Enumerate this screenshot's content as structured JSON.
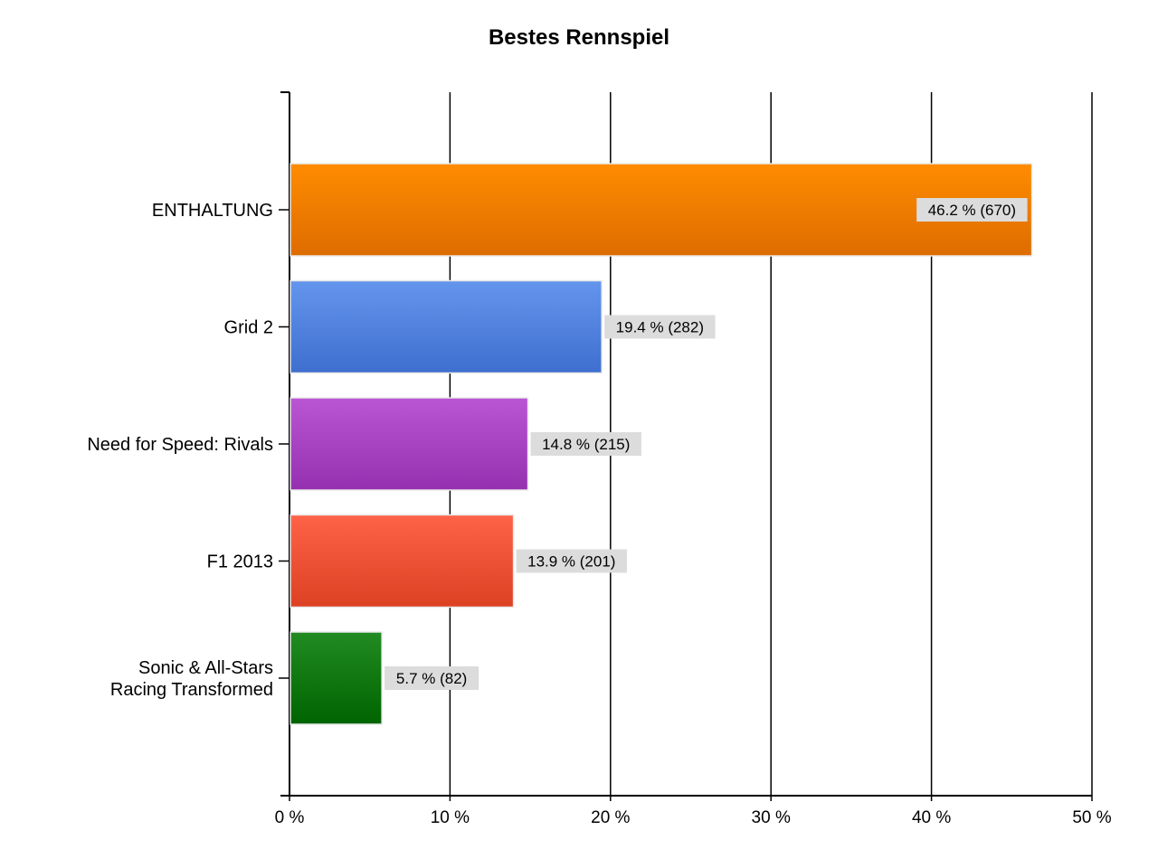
{
  "chart_data": {
    "type": "bar",
    "orientation": "horizontal",
    "title": "Bestes Rennspiel",
    "xlim": [
      0,
      50
    ],
    "xticks": [
      0,
      10,
      20,
      30,
      40,
      50
    ],
    "xtick_labels": [
      "0 %",
      "10 %",
      "20 %",
      "30 %",
      "40 %",
      "50 %"
    ],
    "grid": true,
    "legend": "none",
    "categories": [
      "ENTHALTUNG",
      "Grid 2",
      "Need for Speed: Rivals",
      "F1 2013",
      "Sonic & All-Stars Racing Transformed"
    ],
    "category_lines": [
      [
        "ENTHALTUNG"
      ],
      [
        "Grid 2"
      ],
      [
        "Need for Speed: Rivals"
      ],
      [
        "F1 2013"
      ],
      [
        "Sonic & All-Stars",
        "Racing Transformed"
      ]
    ],
    "values": [
      46.2,
      19.4,
      14.8,
      13.9,
      5.7
    ],
    "counts": [
      670,
      282,
      215,
      201,
      82
    ],
    "data_labels": [
      "46.2 % (670)",
      "19.4 % (282)",
      "14.8 % (215)",
      "13.9 % (201)",
      "5.7 % (82)"
    ],
    "colors": [
      [
        "#ff8c00",
        "#dd6c00"
      ],
      [
        "#6495ed",
        "#3f6fcf"
      ],
      [
        "#ba55d3",
        "#9530b0"
      ],
      [
        "#ff6347",
        "#dd4124"
      ],
      [
        "#228b22",
        "#006400"
      ]
    ]
  }
}
